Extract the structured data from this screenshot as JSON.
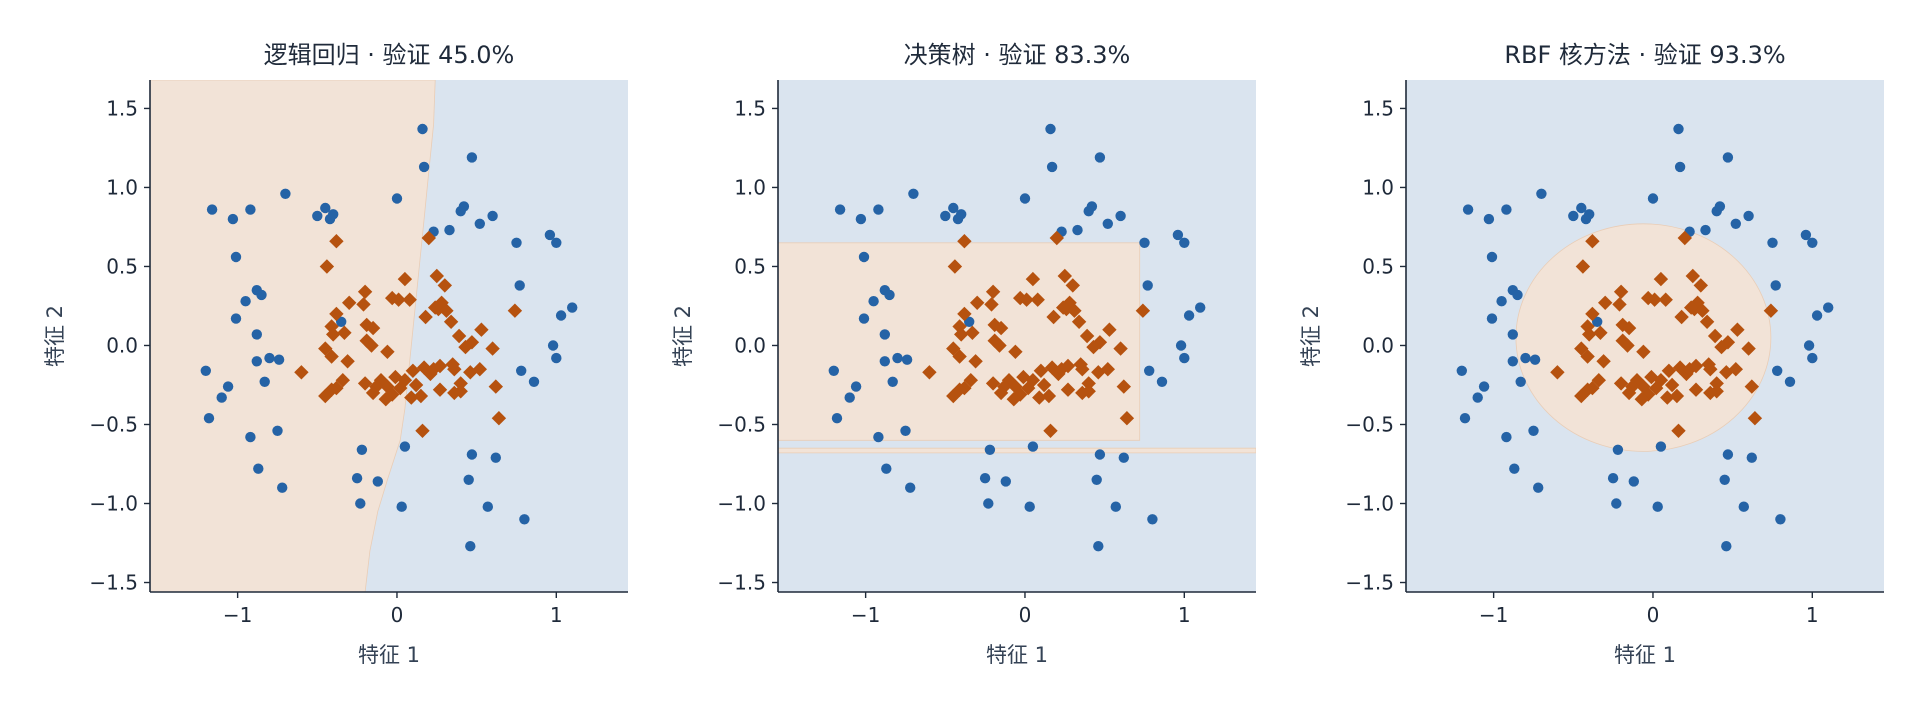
{
  "chart_data": [
    {
      "type": "scatter",
      "title": "逻辑回归 · 验证 45.0%",
      "xlabel": "特征 1",
      "ylabel": "特征 2",
      "xlim": [
        -1.55,
        1.45
      ],
      "ylim": [
        -1.56,
        1.68
      ],
      "xticks": [
        {
          "value": -1,
          "label": "−1"
        },
        {
          "value": 0,
          "label": "0"
        },
        {
          "value": 1,
          "label": "1"
        }
      ],
      "yticks": [
        {
          "value": -1.5,
          "label": "−1.5"
        },
        {
          "value": -1.0,
          "label": "−1.0"
        },
        {
          "value": -0.5,
          "label": "−0.5"
        },
        {
          "value": 0.0,
          "label": "0.0"
        },
        {
          "value": 0.5,
          "label": "0.5"
        },
        {
          "value": 1.0,
          "label": "1.0"
        },
        {
          "value": 1.5,
          "label": "1.5"
        }
      ],
      "decision_regions": {
        "kind": "polygons",
        "background": "blue",
        "orange": [
          [
            [
              -1.55,
              -1.56
            ],
            [
              -1.55,
              1.68
            ],
            [
              0.24,
              1.68
            ],
            [
              0.23,
              1.4
            ],
            [
              0.2,
              1.1
            ],
            [
              0.17,
              0.8
            ],
            [
              0.14,
              0.5
            ],
            [
              0.11,
              0.2
            ],
            [
              0.08,
              -0.1
            ],
            [
              0.05,
              -0.4
            ],
            [
              0.02,
              -0.6
            ],
            [
              -0.06,
              -0.85
            ],
            [
              -0.12,
              -1.05
            ],
            [
              -0.17,
              -1.3
            ],
            [
              -0.2,
              -1.56
            ]
          ]
        ]
      }
    },
    {
      "type": "scatter",
      "title": "决策树 · 验证 83.3%",
      "xlabel": "特征 1",
      "ylabel": "特征 2",
      "xlim": [
        -1.55,
        1.45
      ],
      "ylim": [
        -1.56,
        1.68
      ],
      "xticks": [
        {
          "value": -1,
          "label": "−1"
        },
        {
          "value": 0,
          "label": "0"
        },
        {
          "value": 1,
          "label": "1"
        }
      ],
      "yticks": [
        {
          "value": -1.5,
          "label": "−1.5"
        },
        {
          "value": -1.0,
          "label": "−1.0"
        },
        {
          "value": -0.5,
          "label": "−0.5"
        },
        {
          "value": 0.0,
          "label": "0.0"
        },
        {
          "value": 0.5,
          "label": "0.5"
        },
        {
          "value": 1.0,
          "label": "1.0"
        },
        {
          "value": 1.5,
          "label": "1.5"
        }
      ],
      "decision_regions": {
        "kind": "polygons",
        "background": "blue",
        "orange": [
          [
            [
              -1.55,
              -0.6
            ],
            [
              -1.55,
              0.65
            ],
            [
              0.72,
              0.65
            ],
            [
              0.72,
              -0.6
            ]
          ],
          [
            [
              -1.55,
              -0.68
            ],
            [
              -1.55,
              -0.65
            ],
            [
              1.45,
              -0.65
            ],
            [
              1.45,
              -0.68
            ]
          ]
        ]
      }
    },
    {
      "type": "scatter",
      "title": "RBF 核方法 · 验证 93.3%",
      "xlabel": "特征 1",
      "ylabel": "特征 2",
      "xlim": [
        -1.55,
        1.45
      ],
      "ylim": [
        -1.56,
        1.68
      ],
      "xticks": [
        {
          "value": -1,
          "label": "−1"
        },
        {
          "value": 0,
          "label": "0"
        },
        {
          "value": 1,
          "label": "1"
        }
      ],
      "yticks": [
        {
          "value": -1.5,
          "label": "−1.5"
        },
        {
          "value": -1.0,
          "label": "−1.0"
        },
        {
          "value": -0.5,
          "label": "−0.5"
        },
        {
          "value": 0.0,
          "label": "0.0"
        },
        {
          "value": 0.5,
          "label": "0.5"
        },
        {
          "value": 1.0,
          "label": "1.0"
        },
        {
          "value": 1.5,
          "label": "1.5"
        }
      ],
      "decision_regions": {
        "kind": "ellipse",
        "background": "blue",
        "orange": {
          "cx": -0.06,
          "cy": 0.05,
          "rx": 0.8,
          "ry": 0.72
        }
      }
    }
  ],
  "colors": {
    "class_a": "#2563a6",
    "class_b": "#b6520f",
    "region_blue": "#dae4ef",
    "region_orange": "#f2e3d7",
    "axis": "#1f2a3a"
  },
  "series": [
    {
      "marker": "circle",
      "color": "#2563a6",
      "points": [
        [
          -1.16,
          0.86
        ],
        [
          -1.03,
          0.8
        ],
        [
          -0.92,
          0.86
        ],
        [
          -0.7,
          0.96
        ],
        [
          -0.5,
          0.82
        ],
        [
          -0.45,
          0.87
        ],
        [
          -0.42,
          0.8
        ],
        [
          -0.4,
          0.83
        ],
        [
          0.0,
          0.93
        ],
        [
          0.16,
          1.37
        ],
        [
          0.17,
          1.13
        ],
        [
          0.23,
          0.72
        ],
        [
          0.33,
          0.73
        ],
        [
          0.4,
          0.85
        ],
        [
          0.42,
          0.88
        ],
        [
          0.47,
          1.19
        ],
        [
          0.52,
          0.77
        ],
        [
          0.6,
          0.82
        ],
        [
          0.75,
          0.65
        ],
        [
          0.96,
          0.7
        ],
        [
          1.0,
          0.65
        ],
        [
          -1.01,
          0.56
        ],
        [
          -0.95,
          0.28
        ],
        [
          -0.88,
          0.35
        ],
        [
          -0.85,
          0.32
        ],
        [
          -1.01,
          0.17
        ],
        [
          -0.88,
          0.07
        ],
        [
          -0.35,
          0.15
        ],
        [
          0.77,
          0.38
        ],
        [
          1.1,
          0.24
        ],
        [
          1.03,
          0.19
        ],
        [
          0.98,
          0.0
        ],
        [
          1.0,
          -0.08
        ],
        [
          -1.2,
          -0.16
        ],
        [
          -0.88,
          -0.1
        ],
        [
          -0.8,
          -0.08
        ],
        [
          -0.74,
          -0.09
        ],
        [
          -1.06,
          -0.26
        ],
        [
          -1.1,
          -0.33
        ],
        [
          -0.83,
          -0.23
        ],
        [
          -1.18,
          -0.46
        ],
        [
          -0.75,
          -0.54
        ],
        [
          -0.92,
          -0.58
        ],
        [
          0.78,
          -0.16
        ],
        [
          0.86,
          -0.23
        ],
        [
          -0.22,
          -0.66
        ],
        [
          0.05,
          -0.64
        ],
        [
          0.47,
          -0.69
        ],
        [
          0.62,
          -0.71
        ],
        [
          -0.87,
          -0.78
        ],
        [
          -0.25,
          -0.84
        ],
        [
          -0.12,
          -0.86
        ],
        [
          0.45,
          -0.85
        ],
        [
          -0.72,
          -0.9
        ],
        [
          -0.23,
          -1.0
        ],
        [
          0.03,
          -1.02
        ],
        [
          0.57,
          -1.02
        ],
        [
          0.8,
          -1.1
        ],
        [
          0.46,
          -1.27
        ]
      ]
    },
    {
      "marker": "diamond",
      "color": "#b6520f",
      "points": [
        [
          -0.38,
          0.66
        ],
        [
          0.2,
          0.68
        ],
        [
          -0.44,
          0.5
        ],
        [
          0.25,
          0.44
        ],
        [
          -0.2,
          0.34
        ],
        [
          0.3,
          0.38
        ],
        [
          0.05,
          0.42
        ],
        [
          -0.03,
          0.3
        ],
        [
          0.01,
          0.29
        ],
        [
          0.08,
          0.29
        ],
        [
          -0.3,
          0.27
        ],
        [
          -0.21,
          0.26
        ],
        [
          0.28,
          0.27
        ],
        [
          0.26,
          0.23
        ],
        [
          0.24,
          0.24
        ],
        [
          -0.38,
          0.2
        ],
        [
          0.31,
          0.22
        ],
        [
          0.18,
          0.18
        ],
        [
          -0.41,
          0.12
        ],
        [
          0.74,
          0.22
        ],
        [
          0.34,
          0.15
        ],
        [
          -0.4,
          0.07
        ],
        [
          -0.19,
          0.13
        ],
        [
          -0.15,
          0.11
        ],
        [
          -0.33,
          0.08
        ],
        [
          0.53,
          0.1
        ],
        [
          0.47,
          0.02
        ],
        [
          0.39,
          0.06
        ],
        [
          -0.19,
          0.03
        ],
        [
          -0.16,
          0.0
        ],
        [
          -0.45,
          -0.02
        ],
        [
          0.43,
          -0.01
        ],
        [
          -0.06,
          -0.04
        ],
        [
          -0.41,
          -0.07
        ],
        [
          0.6,
          -0.02
        ],
        [
          -0.6,
          -0.17
        ],
        [
          -0.31,
          -0.1
        ],
        [
          0.35,
          -0.12
        ],
        [
          0.21,
          -0.18
        ],
        [
          0.17,
          -0.14
        ],
        [
          0.1,
          -0.16
        ],
        [
          0.23,
          -0.15
        ],
        [
          0.27,
          -0.13
        ],
        [
          0.36,
          -0.15
        ],
        [
          0.46,
          -0.17
        ],
        [
          0.52,
          -0.15
        ],
        [
          -0.01,
          -0.2
        ],
        [
          -0.06,
          -0.26
        ],
        [
          0.05,
          -0.22
        ],
        [
          -0.1,
          -0.22
        ],
        [
          -0.2,
          -0.24
        ],
        [
          -0.13,
          -0.26
        ],
        [
          0.02,
          -0.27
        ],
        [
          -0.03,
          -0.31
        ],
        [
          0.12,
          -0.25
        ],
        [
          -0.38,
          -0.27
        ],
        [
          -0.34,
          -0.22
        ],
        [
          -0.41,
          -0.28
        ],
        [
          -0.45,
          -0.32
        ],
        [
          0.4,
          -0.24
        ],
        [
          0.62,
          -0.26
        ],
        [
          0.27,
          -0.28
        ],
        [
          -0.07,
          -0.34
        ],
        [
          -0.15,
          -0.3
        ],
        [
          0.09,
          -0.33
        ],
        [
          0.15,
          -0.32
        ],
        [
          0.4,
          -0.29
        ],
        [
          0.36,
          -0.3
        ],
        [
          0.64,
          -0.46
        ],
        [
          0.16,
          -0.54
        ]
      ]
    }
  ]
}
